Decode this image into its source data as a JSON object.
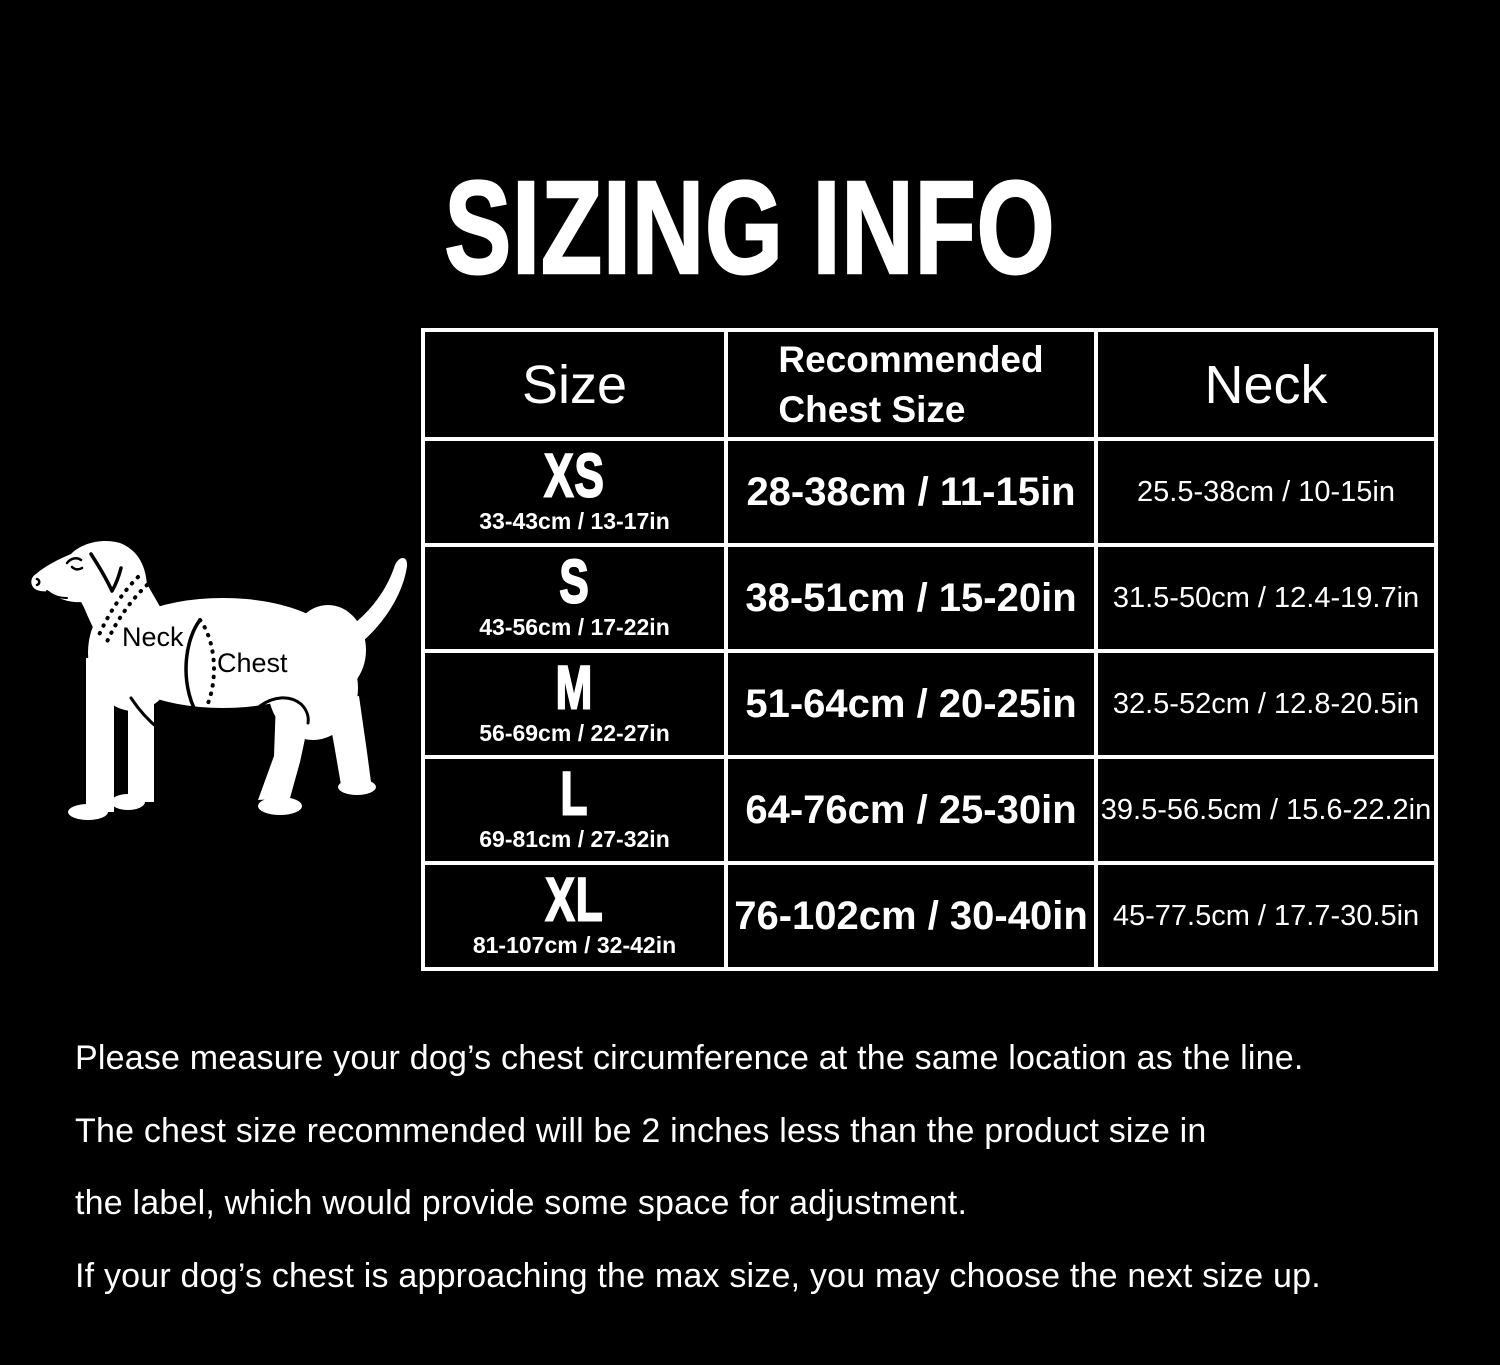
{
  "page": {
    "title": "SIZING INFO"
  },
  "colors": {
    "background": "#000000",
    "text": "#ffffff",
    "table_border": "#ffffff",
    "dog_fill": "#ffffff",
    "dog_detail": "#000000"
  },
  "diagram": {
    "neck_label": "Neck",
    "chest_label": "Chest"
  },
  "table": {
    "header_size": "Size",
    "header_chest_line1": "Recommended",
    "header_chest_line2": "Chest Size",
    "header_neck": "Neck",
    "rows": [
      {
        "size": "XS",
        "size_sub": "33-43cm / 13-17in",
        "chest": "28-38cm / 11-15in",
        "neck": "25.5-38cm / 10-15in"
      },
      {
        "size": "S",
        "size_sub": "43-56cm / 17-22in",
        "chest": "38-51cm / 15-20in",
        "neck": "31.5-50cm / 12.4-19.7in"
      },
      {
        "size": "M",
        "size_sub": "56-69cm / 22-27in",
        "chest": "51-64cm / 20-25in",
        "neck": "32.5-52cm / 12.8-20.5in"
      },
      {
        "size": "L",
        "size_sub": "69-81cm / 27-32in",
        "chest": "64-76cm / 25-30in",
        "neck": "39.5-56.5cm / 15.6-22.2in"
      },
      {
        "size": "XL",
        "size_sub": "81-107cm / 32-42in",
        "chest": "76-102cm / 30-40in",
        "neck": "45-77.5cm / 17.7-30.5in"
      }
    ]
  },
  "notes": {
    "lines": [
      "Please measure your dog’s chest circumference at the same location as the line.",
      "The chest size recommended will be 2 inches less than the product size in",
      "the label, which would provide some space for adjustment.",
      "If your dog’s chest is approaching the max size, you may choose the next size up."
    ]
  }
}
